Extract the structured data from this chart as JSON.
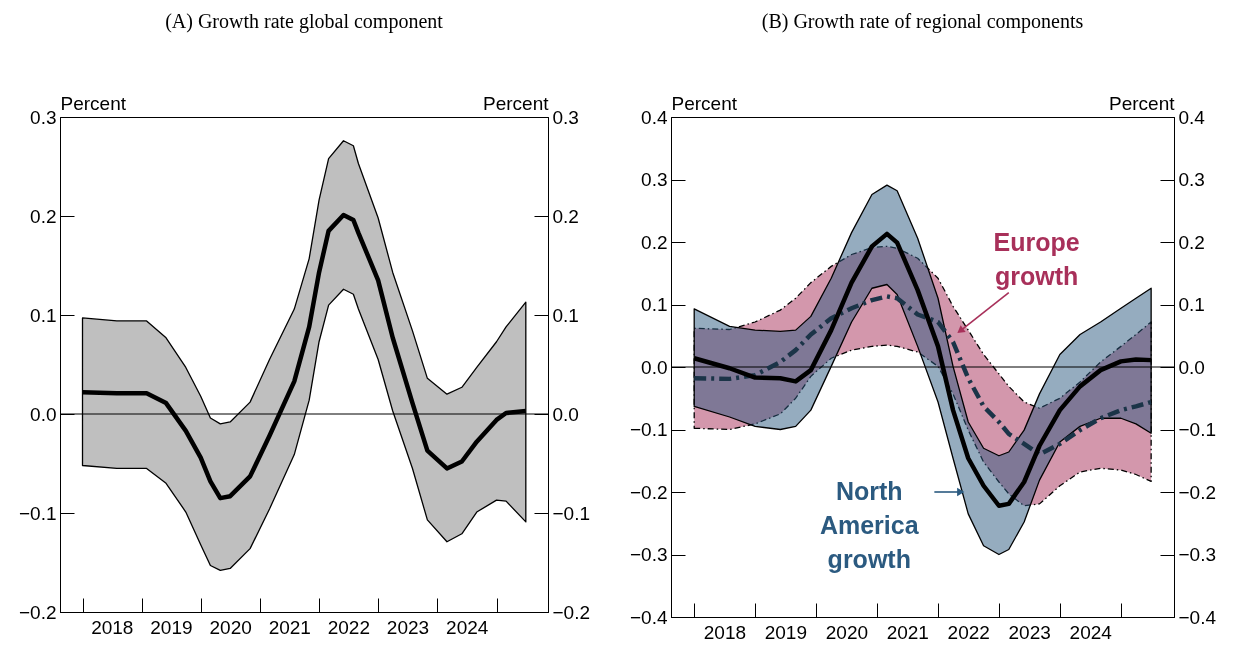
{
  "chart_data": [
    {
      "type": "line",
      "title": "(A) Growth rate global component",
      "ylabel": "Percent",
      "y2label": "Percent",
      "x": [
        "2018-01",
        "2018-08",
        "2019-02",
        "2019-06",
        "2019-10",
        "2020-01",
        "2020-03",
        "2020-05",
        "2020-07",
        "2020-11",
        "2021-03",
        "2021-08",
        "2021-11",
        "2022-01",
        "2022-03",
        "2022-06",
        "2022-08",
        "2022-09",
        "2023-01",
        "2023-04",
        "2023-08",
        "2023-11",
        "2024-03",
        "2024-06",
        "2024-09",
        "2025-01",
        "2025-03",
        "2025-07"
      ],
      "xlim": [
        "2017-08-15",
        "2025-11-15"
      ],
      "xticks": [
        {
          "value": "2018-01",
          "label": null
        },
        {
          "value": "2018-07",
          "label": "2018"
        },
        {
          "value": "2019-01",
          "label": null
        },
        {
          "value": "2019-07",
          "label": "2019"
        },
        {
          "value": "2020-01",
          "label": null
        },
        {
          "value": "2020-07",
          "label": "2020"
        },
        {
          "value": "2021-01",
          "label": null
        },
        {
          "value": "2021-07",
          "label": "2021"
        },
        {
          "value": "2022-01",
          "label": null
        },
        {
          "value": "2022-07",
          "label": "2022"
        },
        {
          "value": "2023-01",
          "label": null
        },
        {
          "value": "2023-07",
          "label": "2023"
        },
        {
          "value": "2024-01",
          "label": null
        },
        {
          "value": "2024-07",
          "label": "2024"
        },
        {
          "value": "2025-01",
          "label": null
        }
      ],
      "ylim": [
        -0.2,
        0.3
      ],
      "yticks": [
        {
          "value": -0.2,
          "label": "−0.2"
        },
        {
          "value": -0.1,
          "label": "−0.1"
        },
        {
          "value": 0,
          "label": "0.0"
        },
        {
          "value": 0.1,
          "label": "0.1"
        },
        {
          "value": 0.2,
          "label": "0.2"
        },
        {
          "value": 0.3,
          "label": "0.3"
        }
      ],
      "y2lim": [
        -0.2,
        0.3
      ],
      "y2ticks": [
        {
          "value": -0.2,
          "label": "−0.2"
        },
        {
          "value": -0.1,
          "label": "−0.1"
        },
        {
          "value": 0,
          "label": "0.0"
        },
        {
          "value": 0.1,
          "label": "0.1"
        },
        {
          "value": 0.2,
          "label": "0.2"
        },
        {
          "value": 0.3,
          "label": "0.3"
        }
      ],
      "ref_lines": [
        {
          "axis": "y",
          "value": 0,
          "color": "#000000"
        }
      ],
      "series": [
        {
          "color": "#000000",
          "line_style": "solid",
          "colors": [
            "#808080",
            "#808080",
            "#808080",
            "#808080",
            "#808080",
            "#808080",
            "#808080",
            "#808080",
            "#808080",
            "#808080",
            "#808080",
            "#808080",
            "#808080",
            "#808080",
            "#808080",
            "#808080",
            "#808080",
            "#808080",
            "#808080",
            "#808080",
            "#808080",
            "#808080",
            "#808080",
            "#808080",
            "#808080",
            "#808080",
            "#808080",
            "#808080"
          ],
          "values": [
            0.022,
            0.021,
            0.021,
            0.011,
            -0.017,
            -0.044,
            -0.068,
            -0.085,
            -0.083,
            -0.063,
            -0.022,
            0.033,
            0.088,
            0.143,
            0.185,
            0.201,
            0.196,
            0.183,
            0.135,
            0.077,
            0.011,
            -0.037,
            -0.055,
            -0.048,
            -0.028,
            -0.006,
            0.001,
            0.003
          ],
          "upper": [
            0.097,
            0.094,
            0.094,
            0.077,
            0.047,
            0.018,
            -0.004,
            -0.01,
            -0.008,
            0.012,
            0.055,
            0.106,
            0.157,
            0.216,
            0.258,
            0.276,
            0.271,
            0.253,
            0.198,
            0.143,
            0.084,
            0.036,
            0.02,
            0.027,
            0.047,
            0.073,
            0.088,
            0.113
          ],
          "lower": [
            -0.052,
            -0.055,
            -0.055,
            -0.07,
            -0.099,
            -0.132,
            -0.153,
            -0.158,
            -0.156,
            -0.136,
            -0.096,
            -0.041,
            0.014,
            0.073,
            0.11,
            0.126,
            0.121,
            0.106,
            0.055,
            0.003,
            -0.055,
            -0.107,
            -0.129,
            -0.121,
            -0.099,
            -0.087,
            -0.088,
            -0.109
          ]
        }
      ]
    },
    {
      "type": "line",
      "title": "(B) Growth rate of regional components",
      "ylabel": "Percent",
      "y2label": "Percent",
      "x": [
        "2018-01",
        "2018-08",
        "2019-01",
        "2019-06",
        "2019-09",
        "2019-12",
        "2020-04",
        "2020-08",
        "2020-12",
        "2021-03",
        "2021-05",
        "2021-09",
        "2022-01",
        "2022-04",
        "2022-07",
        "2022-10",
        "2023-01",
        "2023-03",
        "2023-06",
        "2023-09",
        "2024-01",
        "2024-05",
        "2024-09",
        "2025-01",
        "2025-04",
        "2025-07"
      ],
      "xlim": [
        "2017-08-15",
        "2025-11-15"
      ],
      "xticks": [
        {
          "value": "2018-01",
          "label": null
        },
        {
          "value": "2018-07",
          "label": "2018"
        },
        {
          "value": "2019-01",
          "label": null
        },
        {
          "value": "2019-07",
          "label": "2019"
        },
        {
          "value": "2020-01",
          "label": null
        },
        {
          "value": "2020-07",
          "label": "2020"
        },
        {
          "value": "2021-01",
          "label": null
        },
        {
          "value": "2021-07",
          "label": "2021"
        },
        {
          "value": "2022-01",
          "label": null
        },
        {
          "value": "2022-07",
          "label": "2022"
        },
        {
          "value": "2023-01",
          "label": null
        },
        {
          "value": "2023-07",
          "label": "2023"
        },
        {
          "value": "2024-01",
          "label": null
        },
        {
          "value": "2024-07",
          "label": "2024"
        },
        {
          "value": "2025-01",
          "label": null
        }
      ],
      "ylim": [
        -0.4,
        0.4
      ],
      "yticks": [
        {
          "value": -0.4,
          "label": "−0.4"
        },
        {
          "value": -0.3,
          "label": "−0.3"
        },
        {
          "value": -0.2,
          "label": "−0.2"
        },
        {
          "value": -0.1,
          "label": "−0.1"
        },
        {
          "value": 0,
          "label": "0.0"
        },
        {
          "value": 0.1,
          "label": "0.1"
        },
        {
          "value": 0.2,
          "label": "0.2"
        },
        {
          "value": 0.3,
          "label": "0.3"
        },
        {
          "value": 0.4,
          "label": "0.4"
        }
      ],
      "y2lim": [
        -0.4,
        0.4
      ],
      "y2ticks": [
        {
          "value": -0.4,
          "label": "−0.4"
        },
        {
          "value": -0.3,
          "label": "−0.3"
        },
        {
          "value": -0.2,
          "label": "−0.2"
        },
        {
          "value": -0.1,
          "label": "−0.1"
        },
        {
          "value": 0,
          "label": "0.0"
        },
        {
          "value": 0.1,
          "label": "0.1"
        },
        {
          "value": 0.2,
          "label": "0.2"
        },
        {
          "value": 0.3,
          "label": "0.3"
        },
        {
          "value": 0.4,
          "label": "0.4"
        }
      ],
      "ref_lines": [
        {
          "axis": "y",
          "value": 0,
          "color": "#000000"
        }
      ],
      "series": [
        {
          "name": "Europe growth",
          "color": "#1b3448",
          "line_style": "dashed",
          "colors": [
            "#a8305a",
            "#a8305a",
            "#a8305a",
            "#a8305a",
            "#a8305a",
            "#a8305a",
            "#a8305a",
            "#a8305a",
            "#a8305a",
            "#a8305a",
            "#a8305a",
            "#a8305a",
            "#a8305a",
            "#a8305a",
            "#a8305a",
            "#a8305a",
            "#a8305a",
            "#a8305a",
            "#a8305a",
            "#a8305a",
            "#a8305a",
            "#a8305a",
            "#a8305a",
            "#a8305a",
            "#a8305a",
            "#a8305a"
          ],
          "values": [
            -0.018,
            -0.019,
            -0.013,
            0.008,
            0.027,
            0.052,
            0.078,
            0.094,
            0.107,
            0.113,
            0.11,
            0.084,
            0.072,
            0.04,
            -0.018,
            -0.063,
            -0.088,
            -0.107,
            -0.123,
            -0.14,
            -0.123,
            -0.101,
            -0.082,
            -0.069,
            -0.063,
            -0.056
          ],
          "upper": [
            0.062,
            0.06,
            0.072,
            0.091,
            0.11,
            0.135,
            0.161,
            0.18,
            0.191,
            0.193,
            0.19,
            0.174,
            0.142,
            0.097,
            0.059,
            0.02,
            -0.011,
            -0.031,
            -0.056,
            -0.066,
            -0.05,
            -0.024,
            0.008,
            0.033,
            0.052,
            0.072
          ],
          "lower": [
            -0.098,
            -0.1,
            -0.091,
            -0.075,
            -0.05,
            -0.015,
            0.014,
            0.027,
            0.033,
            0.035,
            0.033,
            0.024,
            0.001,
            -0.043,
            -0.101,
            -0.152,
            -0.184,
            -0.203,
            -0.222,
            -0.219,
            -0.19,
            -0.168,
            -0.162,
            -0.165,
            -0.172,
            -0.183
          ]
        },
        {
          "name": "North America growth",
          "color": "#000000",
          "line_style": "solid",
          "colors": [
            "#2b5a80",
            "#2b5a80",
            "#2b5a80",
            "#2b5a80",
            "#2b5a80",
            "#2b5a80",
            "#2b5a80",
            "#2b5a80",
            "#2b5a80",
            "#2b5a80",
            "#2b5a80",
            "#2b5a80",
            "#2b5a80",
            "#2b5a80",
            "#2b5a80",
            "#2b5a80",
            "#2b5a80",
            "#2b5a80",
            "#2b5a80",
            "#2b5a80",
            "#2b5a80",
            "#2b5a80",
            "#2b5a80",
            "#2b5a80",
            "#2b5a80",
            "#2b5a80"
          ],
          "values": [
            0.014,
            -0.002,
            -0.017,
            -0.018,
            -0.023,
            -0.005,
            0.059,
            0.135,
            0.193,
            0.213,
            0.199,
            0.123,
            0.033,
            -0.069,
            -0.146,
            -0.19,
            -0.222,
            -0.219,
            -0.184,
            -0.126,
            -0.069,
            -0.031,
            -0.005,
            0.009,
            0.012,
            0.011
          ],
          "upper": [
            0.093,
            0.065,
            0.059,
            0.057,
            0.059,
            0.081,
            0.142,
            0.215,
            0.276,
            0.291,
            0.282,
            0.206,
            0.11,
            0.001,
            -0.088,
            -0.13,
            -0.142,
            -0.136,
            -0.101,
            -0.043,
            0.02,
            0.052,
            0.072,
            0.094,
            0.11,
            0.126
          ],
          "lower": [
            -0.063,
            -0.08,
            -0.095,
            -0.1,
            -0.095,
            -0.069,
            0.001,
            0.072,
            0.126,
            0.132,
            0.116,
            0.033,
            -0.056,
            -0.146,
            -0.235,
            -0.286,
            -0.3,
            -0.292,
            -0.248,
            -0.181,
            -0.12,
            -0.095,
            -0.082,
            -0.082,
            -0.091,
            -0.106
          ]
        }
      ]
    }
  ]
}
